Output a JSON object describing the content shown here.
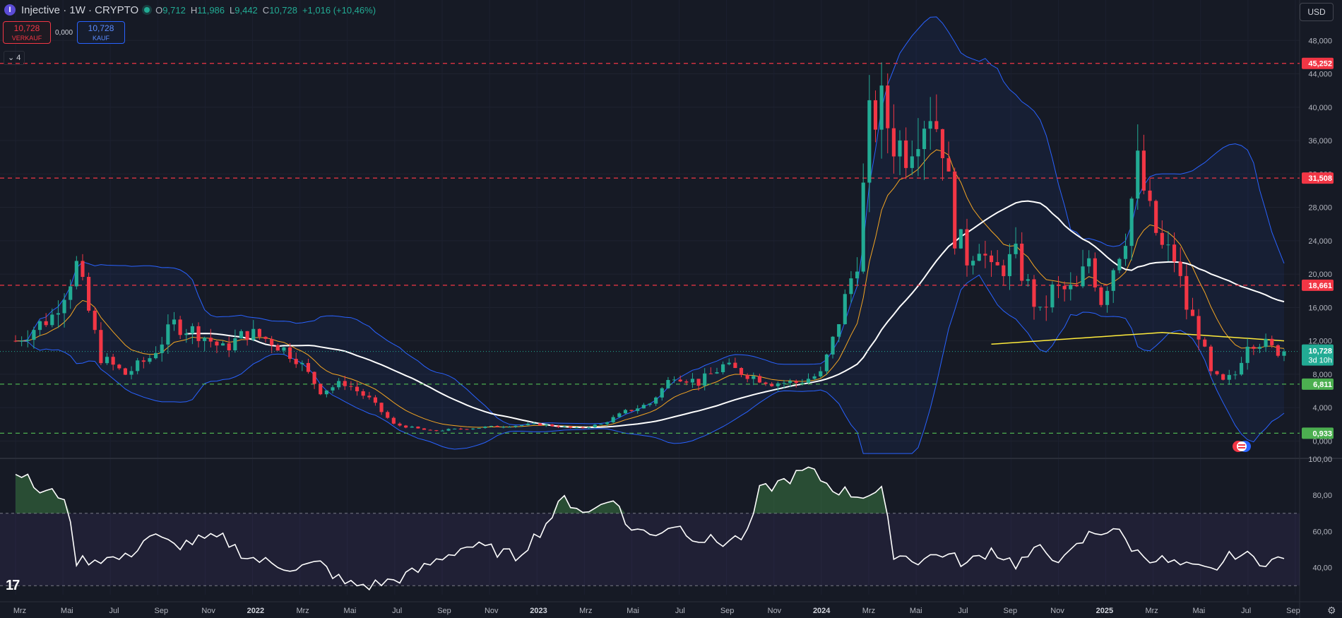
{
  "header": {
    "logo_letter": "I",
    "symbol_title": "Injective · 1W · CRYPTO",
    "ohlc": [
      {
        "k": "O",
        "v": "9,712"
      },
      {
        "k": "H",
        "v": "11,986"
      },
      {
        "k": "L",
        "v": "9,442"
      },
      {
        "k": "C",
        "v": "10,728"
      },
      {
        "k": "",
        "v": "+1,016 (+10,46%)"
      }
    ],
    "sell_price": "10,728",
    "sell_label": "VERKAUF",
    "spread": "0,000",
    "buy_price": "10,728",
    "buy_label": "KAUF",
    "indicator_toggle": "⌄ 4",
    "currency": "USD"
  },
  "colors": {
    "up": "#22ab94",
    "down": "#f23645",
    "bollinger": "#2962ff",
    "ema_fast": "#f5a623",
    "ema_slow": "#ffffff",
    "sma_yellow": "#ffeb3b",
    "hline_red": "#f23645",
    "hline_green": "#4caf50",
    "rsi": "#ffffff",
    "band_fill": "#2962ff"
  },
  "chart_data": [
    {
      "type": "candlestick",
      "title": "Injective · 1W · CRYPTO",
      "ylim": [
        -2,
        52
      ],
      "y_ticks": [
        "0,000",
        "4,000",
        "8,000",
        "12,000",
        "16,000",
        "20,000",
        "24,000",
        "28,000",
        "32,000",
        "36,000",
        "40,000",
        "44,000",
        "48,000"
      ],
      "x_ticks": [
        "Mrz",
        "Mai",
        "Jul",
        "Sep",
        "Nov",
        "2022",
        "Mrz",
        "Mai",
        "Jul",
        "Sep",
        "Nov",
        "2023",
        "Mrz",
        "Mai",
        "Jul",
        "Sep",
        "Nov",
        "2024",
        "Mrz",
        "Mai",
        "Jul",
        "Sep",
        "Nov",
        "2025",
        "Mrz",
        "Mai",
        "Jul",
        "Sep"
      ],
      "horizontal_lines": [
        {
          "value": 45.252,
          "label": "45,252",
          "style": "red-dashed"
        },
        {
          "value": 31.508,
          "label": "31,508",
          "style": "red-dashed"
        },
        {
          "value": 18.661,
          "label": "18,661",
          "style": "red-dashed"
        },
        {
          "value": 6.811,
          "label": "6,811",
          "style": "green-dashed"
        },
        {
          "value": 0.933,
          "label": "0,933",
          "style": "green-dashed"
        }
      ],
      "last_price": {
        "value": 10.728,
        "label": "10,728",
        "countdown": "3d 10h"
      },
      "price_anchors": [
        [
          0,
          12
        ],
        [
          6,
          15
        ],
        [
          10,
          21
        ],
        [
          14,
          10
        ],
        [
          18,
          8
        ],
        [
          22,
          10
        ],
        [
          26,
          14
        ],
        [
          30,
          13
        ],
        [
          34,
          11
        ],
        [
          38,
          13
        ],
        [
          42,
          12
        ],
        [
          46,
          10
        ],
        [
          50,
          6
        ],
        [
          54,
          7
        ],
        [
          58,
          5
        ],
        [
          62,
          2
        ],
        [
          68,
          1.2
        ],
        [
          74,
          1.5
        ],
        [
          80,
          1.8
        ],
        [
          86,
          2.0
        ],
        [
          92,
          1.5
        ],
        [
          96,
          2.0
        ],
        [
          100,
          3.5
        ],
        [
          104,
          4.5
        ],
        [
          108,
          8
        ],
        [
          112,
          7
        ],
        [
          116,
          9
        ],
        [
          120,
          8
        ],
        [
          124,
          7
        ],
        [
          128,
          7
        ],
        [
          132,
          8
        ],
        [
          134,
          12
        ],
        [
          136,
          17
        ],
        [
          138,
          22
        ],
        [
          140,
          38
        ],
        [
          142,
          40
        ],
        [
          144,
          36
        ],
        [
          146,
          35
        ],
        [
          148,
          38
        ],
        [
          150,
          40
        ],
        [
          152,
          36
        ],
        [
          154,
          25
        ],
        [
          156,
          22
        ],
        [
          158,
          24
        ],
        [
          160,
          20
        ],
        [
          164,
          22
        ],
        [
          168,
          15
        ],
        [
          170,
          18
        ],
        [
          174,
          18
        ],
        [
          176,
          22
        ],
        [
          178,
          17
        ],
        [
          180,
          21
        ],
        [
          182,
          25
        ],
        [
          184,
          33
        ],
        [
          186,
          27
        ],
        [
          188,
          23
        ],
        [
          190,
          22
        ],
        [
          192,
          16
        ],
        [
          194,
          13
        ],
        [
          196,
          8
        ],
        [
          198,
          7
        ],
        [
          200,
          8
        ],
        [
          202,
          12
        ],
        [
          204,
          12
        ],
        [
          206,
          11
        ],
        [
          208,
          10.728
        ]
      ]
    },
    {
      "type": "line",
      "title": "RSI",
      "ylim": [
        25,
        100
      ],
      "y_ticks": [
        "40,00",
        "60,00",
        "80,00",
        "100,00"
      ],
      "band": [
        30,
        70
      ],
      "x_ticks": [
        "Mrz",
        "Mai",
        "Jul",
        "Sep",
        "Nov",
        "2022",
        "Mrz",
        "Mai",
        "Jul",
        "Sep",
        "Nov",
        "2023",
        "Mrz",
        "Mai",
        "Jul",
        "Sep",
        "Nov",
        "2024",
        "Mrz",
        "Mai",
        "Jul",
        "Sep",
        "Nov",
        "2025",
        "Mrz",
        "Mai",
        "Jul",
        "Sep"
      ],
      "anchors": [
        [
          0,
          95
        ],
        [
          4,
          82
        ],
        [
          8,
          80
        ],
        [
          10,
          44
        ],
        [
          14,
          45
        ],
        [
          18,
          45
        ],
        [
          22,
          58
        ],
        [
          26,
          52
        ],
        [
          30,
          55
        ],
        [
          34,
          56
        ],
        [
          38,
          46
        ],
        [
          42,
          42
        ],
        [
          46,
          40
        ],
        [
          50,
          42
        ],
        [
          54,
          31
        ],
        [
          58,
          30
        ],
        [
          62,
          33
        ],
        [
          66,
          38
        ],
        [
          70,
          46
        ],
        [
          74,
          52
        ],
        [
          78,
          50
        ],
        [
          82,
          46
        ],
        [
          86,
          60
        ],
        [
          90,
          78
        ],
        [
          94,
          70
        ],
        [
          98,
          80
        ],
        [
          100,
          64
        ],
        [
          104,
          58
        ],
        [
          108,
          64
        ],
        [
          112,
          56
        ],
        [
          116,
          54
        ],
        [
          120,
          58
        ],
        [
          122,
          82
        ],
        [
          126,
          88
        ],
        [
          130,
          94
        ],
        [
          134,
          84
        ],
        [
          138,
          80
        ],
        [
          142,
          82
        ],
        [
          144,
          48
        ],
        [
          148,
          44
        ],
        [
          152,
          48
        ],
        [
          156,
          42
        ],
        [
          160,
          50
        ],
        [
          164,
          42
        ],
        [
          168,
          50
        ],
        [
          172,
          44
        ],
        [
          176,
          58
        ],
        [
          180,
          62
        ],
        [
          184,
          48
        ],
        [
          188,
          44
        ],
        [
          192,
          40
        ],
        [
          196,
          38
        ],
        [
          200,
          48
        ],
        [
          204,
          44
        ],
        [
          208,
          44
        ]
      ]
    }
  ]
}
